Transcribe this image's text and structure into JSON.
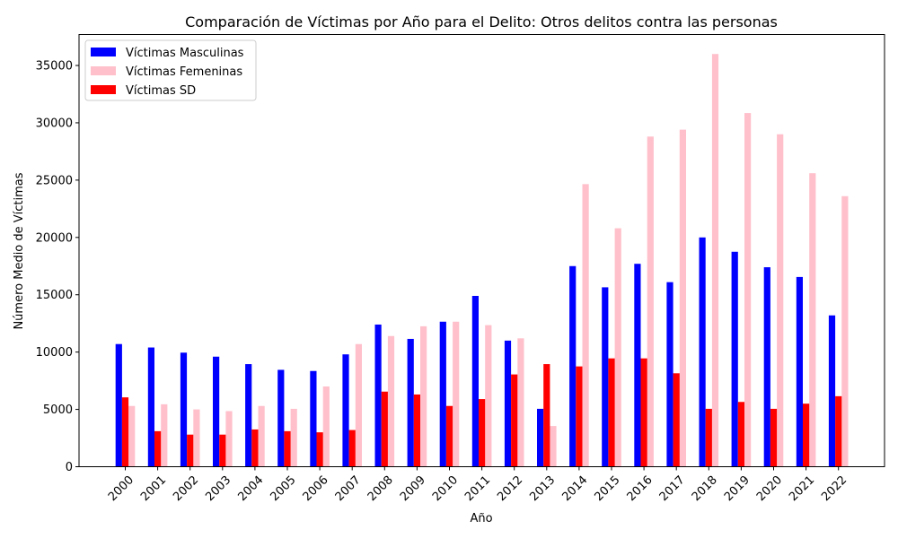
{
  "chart_data": {
    "type": "bar",
    "title": "Comparación de Víctimas por Año para el Delito: Otros delitos contra las personas",
    "xlabel": "Año",
    "ylabel": "Número Medio de Víctimas",
    "categories": [
      "2000",
      "2001",
      "2002",
      "2003",
      "2004",
      "2005",
      "2006",
      "2007",
      "2008",
      "2009",
      "2010",
      "2011",
      "2012",
      "2013",
      "2014",
      "2015",
      "2016",
      "2017",
      "2018",
      "2019",
      "2020",
      "2021",
      "2022"
    ],
    "ylim": [
      0,
      37700
    ],
    "yticks": [
      0,
      5000,
      10000,
      15000,
      20000,
      25000,
      30000,
      35000
    ],
    "legend_position": "upper-left",
    "series": [
      {
        "name": "Víctimas Masculinas",
        "color": "#0000ff",
        "values": [
          10700,
          10400,
          9950,
          9600,
          8950,
          8450,
          8350,
          9800,
          12400,
          11150,
          12650,
          14900,
          11000,
          5050,
          17500,
          15650,
          17700,
          16100,
          20000,
          18750,
          17400,
          16550,
          13200
        ]
      },
      {
        "name": "Víctimas Femeninas",
        "color": "#ffc0cb",
        "values": [
          5300,
          5450,
          5000,
          4850,
          5300,
          5050,
          7000,
          10700,
          11400,
          12250,
          12650,
          12350,
          11200,
          3550,
          24650,
          20800,
          28800,
          29400,
          36000,
          30850,
          29000,
          25600,
          23600
        ]
      },
      {
        "name": "Víctimas SD",
        "color": "#ff0000",
        "values": [
          6050,
          3100,
          2800,
          2800,
          3250,
          3100,
          3000,
          3200,
          6550,
          6300,
          5300,
          5900,
          8050,
          8950,
          8750,
          9450,
          9450,
          8150,
          5050,
          5650,
          5050,
          5500,
          6150
        ]
      }
    ]
  }
}
